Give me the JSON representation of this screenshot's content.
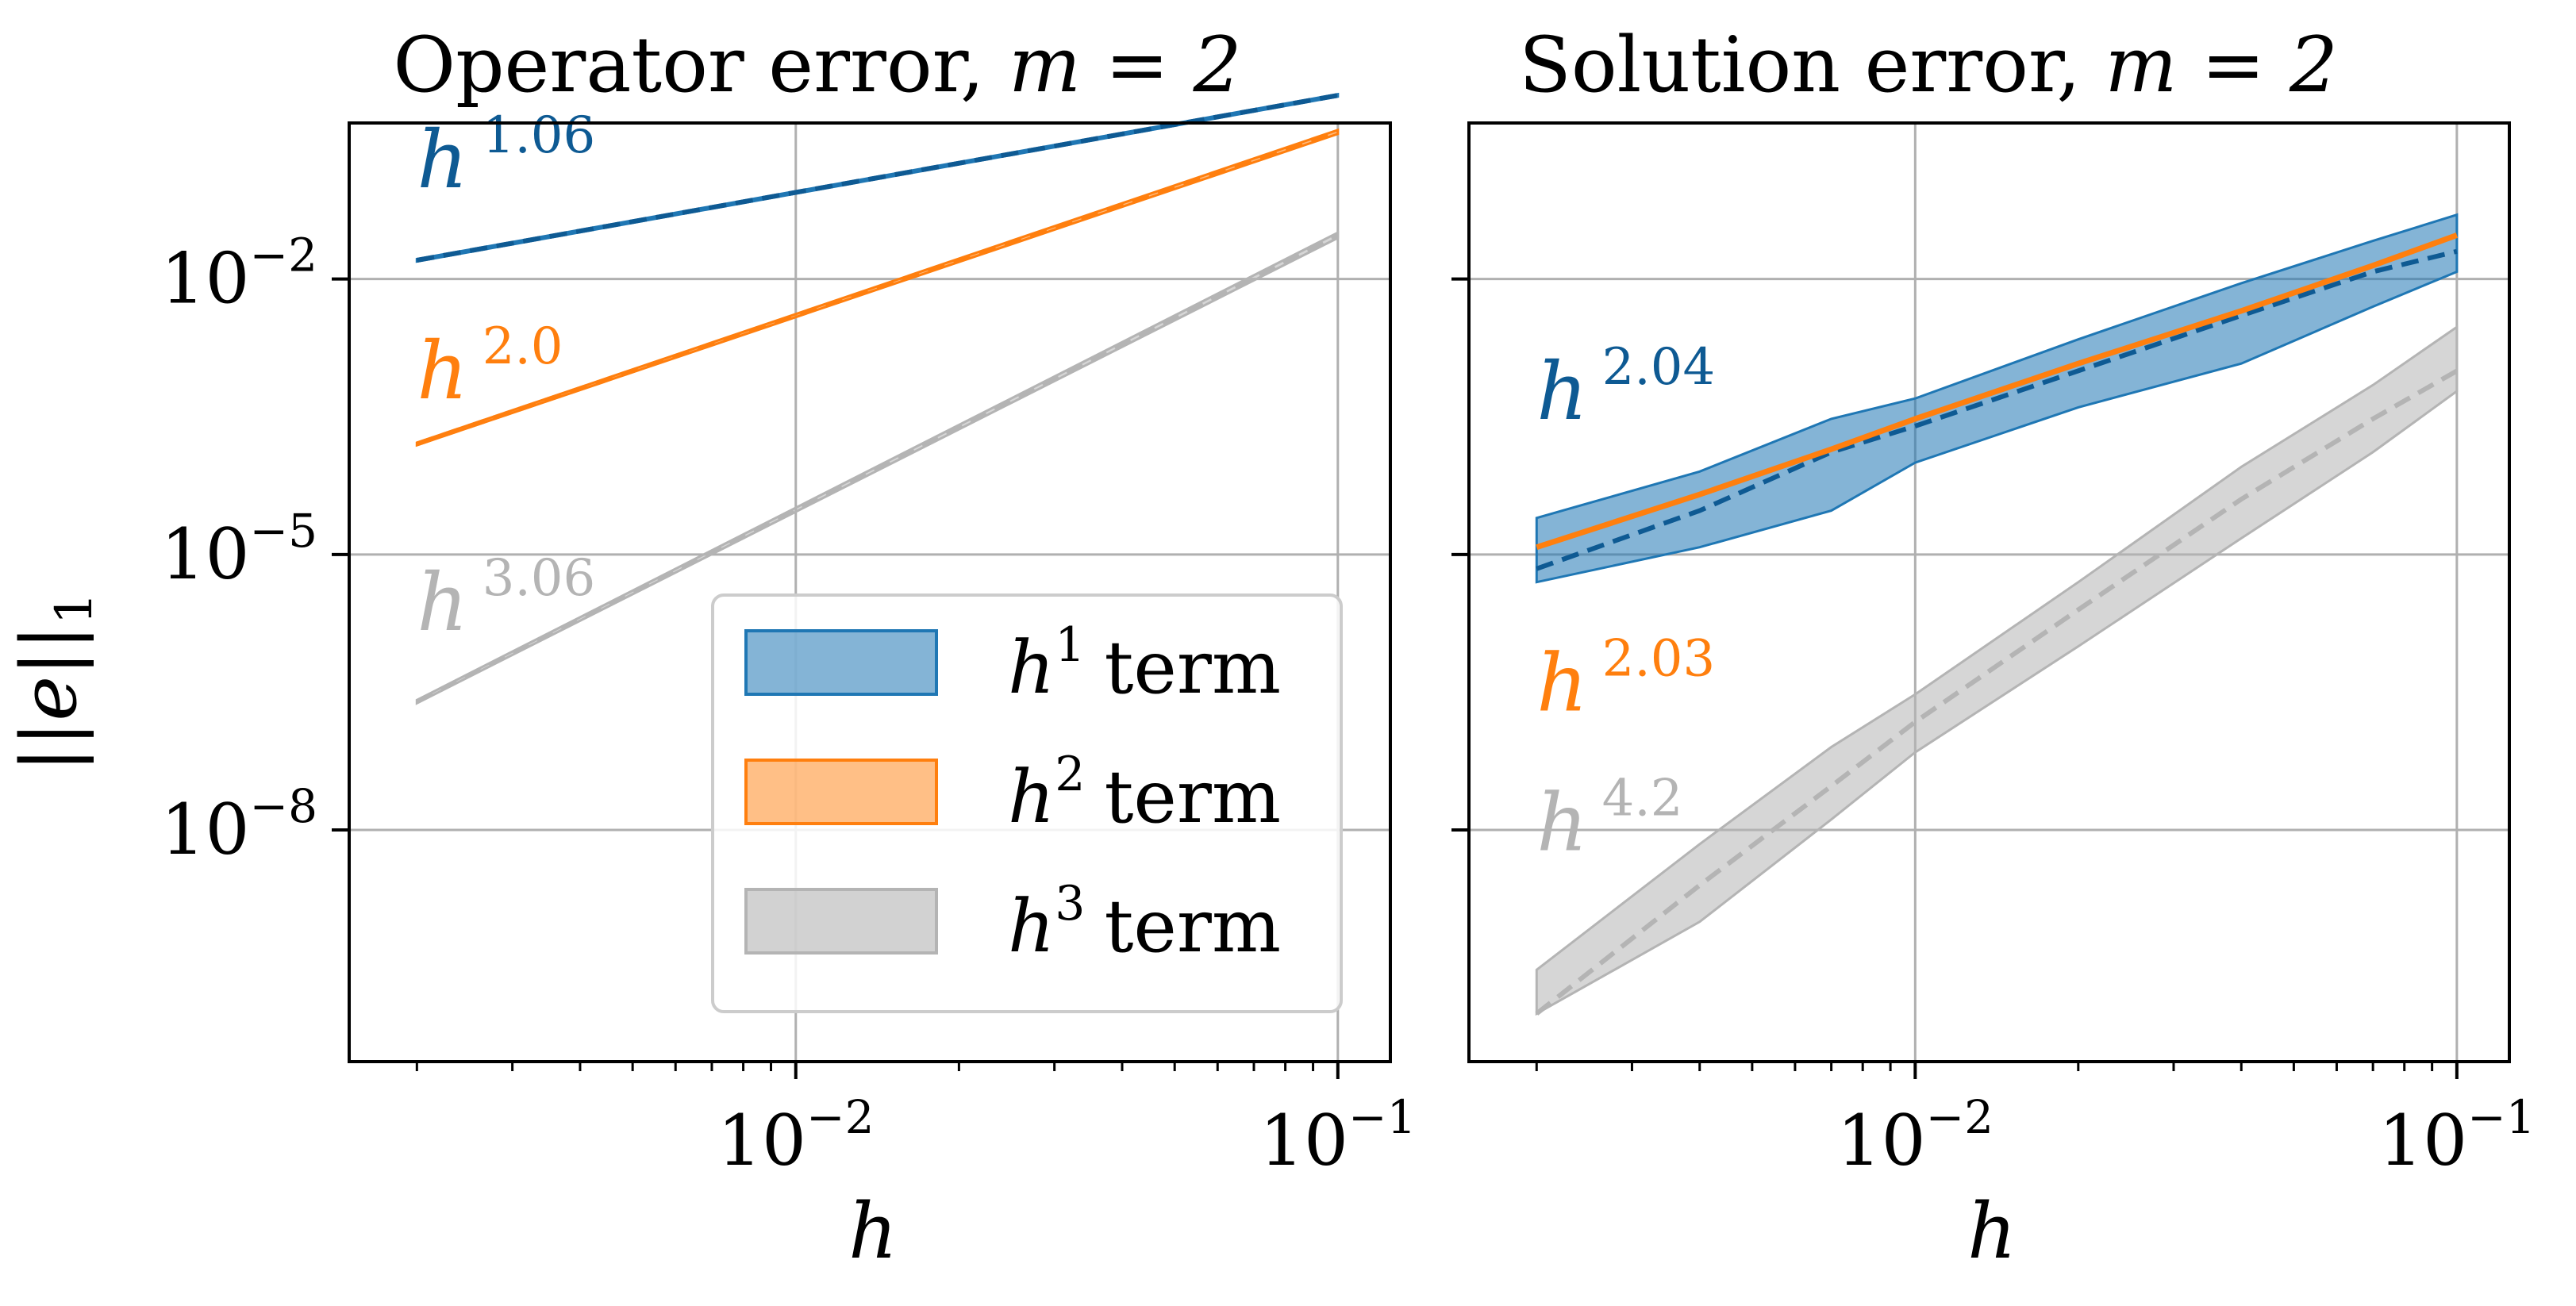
{
  "figure": {
    "ylabel_main": "||e||",
    "ylabel_sub": "1",
    "xlabel": "h",
    "x_ticks": [
      {
        "base": "10",
        "exp": "−2",
        "value": 0.01
      },
      {
        "base": "10",
        "exp": "−1",
        "value": 0.1
      }
    ],
    "y_ticks": [
      {
        "base": "10",
        "exp": "−2",
        "value": 0.01
      },
      {
        "base": "10",
        "exp": "−5",
        "value": 1e-05
      },
      {
        "base": "10",
        "exp": "−8",
        "value": 1e-08
      }
    ]
  },
  "legend": {
    "placement": "lower-right of left panel",
    "items": [
      {
        "base": "h",
        "exp": "1",
        "suffix": "term",
        "color": "#1f77b4"
      },
      {
        "base": "h",
        "exp": "2",
        "suffix": "term",
        "color": "#ff7f0e"
      },
      {
        "base": "h",
        "exp": "3",
        "suffix": "term",
        "color": "#b4b4b4"
      }
    ]
  },
  "colors": {
    "blue": "#1f77b4",
    "blue_dark": "#0e5a93",
    "orange": "#ff7f0e",
    "gray": "#b4b4b4",
    "grid": "#b0b0b0"
  },
  "chart_data": [
    {
      "type": "line",
      "title_text": "Operator error,",
      "title_math": "m = 2",
      "xscale": "log",
      "yscale": "log",
      "xlim": [
        0.0015,
        0.125
      ],
      "ylim": [
        3e-11,
        0.5
      ],
      "grid": true,
      "series": [
        {
          "name": "h^1 term",
          "color": "blue",
          "x": [
            0.002,
            0.1
          ],
          "y": [
            0.016,
            1.0
          ],
          "band_upper": [
            0.0165,
            1.03
          ],
          "band_lower": [
            0.0155,
            0.97
          ],
          "fit_label": {
            "base": "h",
            "exp": "1.06",
            "x": 0.002,
            "y": 0.1
          }
        },
        {
          "name": "h^2 term",
          "color": "orange",
          "x": [
            0.002,
            0.1
          ],
          "y": [
            0.00016,
            0.4
          ],
          "band_upper": [
            0.000165,
            0.42
          ],
          "band_lower": [
            0.000155,
            0.38
          ],
          "fit_label": {
            "base": "h",
            "exp": "2.0",
            "x": 0.002,
            "y": 0.0005
          }
        },
        {
          "name": "h^3 term",
          "color": "gray",
          "x": [
            0.002,
            0.1
          ],
          "y": [
            2.5e-07,
            0.03
          ],
          "band_upper": [
            2.6e-07,
            0.032
          ],
          "band_lower": [
            2.4e-07,
            0.028
          ],
          "fit_label": {
            "base": "h",
            "exp": "3.06",
            "x": 0.002,
            "y": 1.5e-06
          }
        }
      ]
    },
    {
      "type": "line",
      "title_text": "Solution error,",
      "title_math": "m = 2",
      "xscale": "log",
      "yscale": "log",
      "xlim": [
        0.0015,
        0.125
      ],
      "ylim": [
        3e-11,
        0.5
      ],
      "grid": true,
      "series": [
        {
          "name": "h^1 term",
          "color": "blue",
          "x": [
            0.002,
            0.004,
            0.007,
            0.01,
            0.02,
            0.04,
            0.07,
            0.1
          ],
          "y": [
            7e-06,
            3e-05,
            0.00013,
            0.00025,
            0.001,
            0.004,
            0.012,
            0.02
          ],
          "band_upper": [
            2.5e-05,
            8e-05,
            0.0003,
            0.0005,
            0.0022,
            0.009,
            0.026,
            0.05
          ],
          "band_lower": [
            5e-06,
            1.2e-05,
            3e-05,
            0.0001,
            0.0004,
            0.0012,
            0.005,
            0.012
          ],
          "fit_label": {
            "base": "h",
            "exp": "2.04",
            "x": 0.002,
            "y": 0.0003
          }
        },
        {
          "name": "h^2 term",
          "color": "orange",
          "x": [
            0.002,
            0.004,
            0.007,
            0.01,
            0.02,
            0.04,
            0.07,
            0.1
          ],
          "y": [
            1.2e-05,
            4.5e-05,
            0.00014,
            0.0003,
            0.0012,
            0.0045,
            0.014,
            0.03
          ],
          "fit_label": {
            "base": "h",
            "exp": "2.03",
            "x": 0.002,
            "y": 2e-07
          }
        },
        {
          "name": "h^3 term",
          "color": "gray",
          "x": [
            0.002,
            0.004,
            0.007,
            0.01,
            0.02,
            0.04,
            0.07,
            0.1
          ],
          "y": [
            1e-10,
            2.5e-09,
            3e-08,
            1.5e-07,
            2.5e-06,
            4e-05,
            0.0003,
            0.001
          ],
          "band_upper": [
            3e-10,
            7e-09,
            8e-08,
            3e-07,
            5e-06,
            9e-05,
            0.0007,
            0.003
          ],
          "band_lower": [
            1e-10,
            1e-09,
            1.3e-08,
            7e-08,
            1e-06,
            1.5e-05,
            0.00013,
            0.0006
          ],
          "fit_label": {
            "base": "h",
            "exp": "4.2",
            "x": 0.002,
            "y": 6e-09
          }
        }
      ]
    }
  ]
}
